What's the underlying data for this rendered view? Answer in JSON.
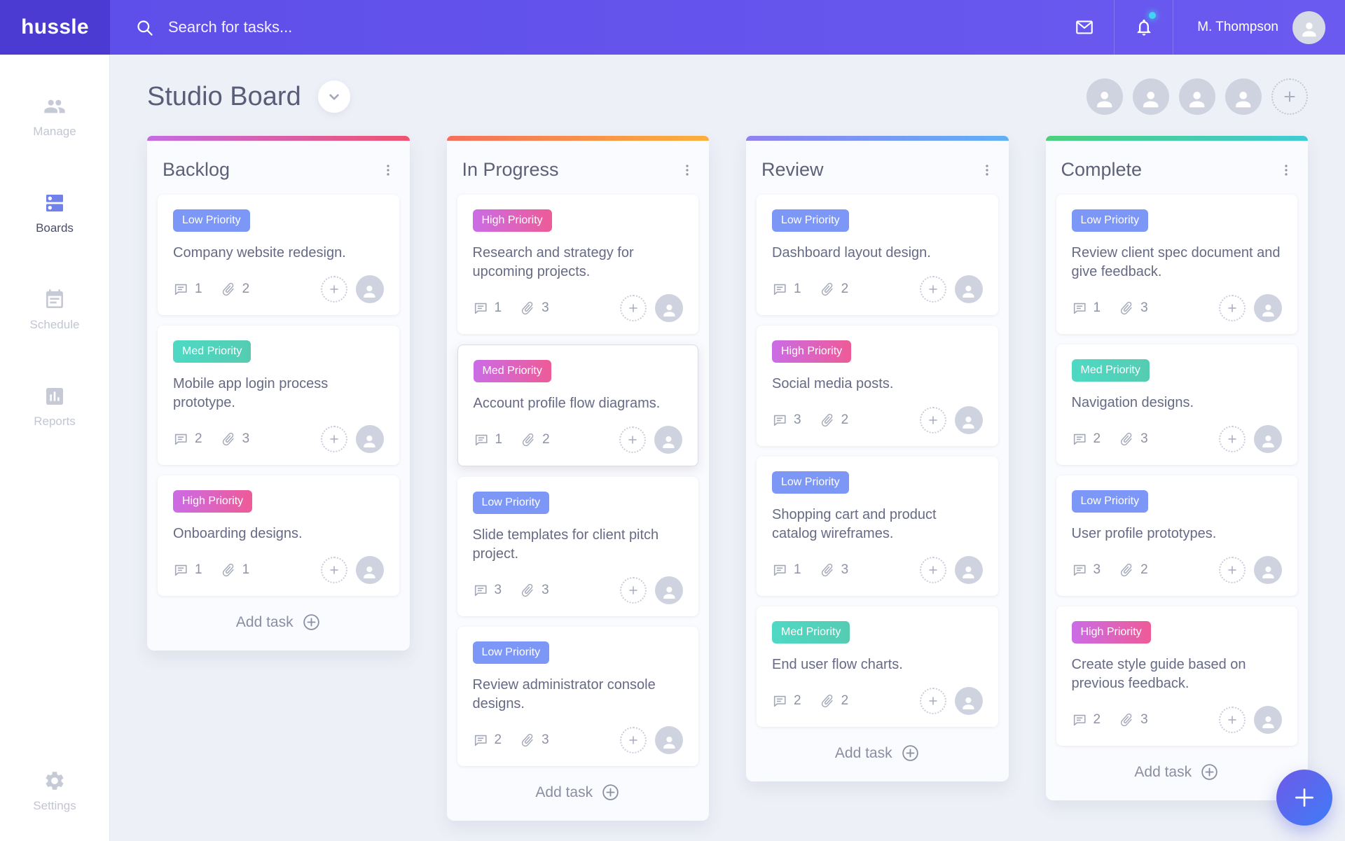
{
  "app": {
    "logo": "hussle"
  },
  "topbar": {
    "search_placeholder": "Search for tasks...",
    "user_name": "M. Thompson",
    "notifications_unread": true
  },
  "sidebar": {
    "items": [
      {
        "label": "Manage",
        "icon": "people-icon",
        "active": false
      },
      {
        "label": "Boards",
        "icon": "boards-icon",
        "active": true
      },
      {
        "label": "Schedule",
        "icon": "calendar-icon",
        "active": false
      },
      {
        "label": "Reports",
        "icon": "bar-chart-icon",
        "active": false
      }
    ],
    "settings": {
      "label": "Settings",
      "icon": "gear-icon"
    }
  },
  "header": {
    "title": "Studio Board",
    "team_avatar_count": 4
  },
  "board": {
    "add_task_label": "Add task",
    "columns": [
      {
        "name": "Backlog",
        "accent_from": "#c46be2",
        "accent_to": "#ef5470",
        "cards": [
          {
            "priority": "Low Priority",
            "variant": "blue",
            "title": "Company website redesign.",
            "comments": 1,
            "attachments": 2
          },
          {
            "priority": "Med Priority",
            "variant": "teal",
            "title": "Mobile app login process prototype.",
            "comments": 2,
            "attachments": 3
          },
          {
            "priority": "High Priority",
            "variant": "pink",
            "title": "Onboarding designs.",
            "comments": 1,
            "attachments": 1
          }
        ]
      },
      {
        "name": "In Progress",
        "accent_from": "#f4705c",
        "accent_to": "#fbb03b",
        "cards": [
          {
            "priority": "High Priority",
            "variant": "pink",
            "title": "Research and strategy for upcoming projects.",
            "comments": 1,
            "attachments": 3
          },
          {
            "priority": "Med Priority",
            "variant": "pink",
            "title": "Account profile flow diagrams.",
            "comments": 1,
            "attachments": 2,
            "highlighted": true
          },
          {
            "priority": "Low Priority",
            "variant": "blue",
            "title": "Slide templates for client pitch project.",
            "comments": 3,
            "attachments": 3
          },
          {
            "priority": "Low Priority",
            "variant": "blue",
            "title": "Review administrator console designs.",
            "comments": 2,
            "attachments": 3
          }
        ]
      },
      {
        "name": "Review",
        "accent_from": "#9181f0",
        "accent_to": "#5fb0f7",
        "cards": [
          {
            "priority": "Low Priority",
            "variant": "blue",
            "title": "Dashboard layout design.",
            "comments": 1,
            "attachments": 2
          },
          {
            "priority": "High Priority",
            "variant": "pink",
            "title": "Social media posts.",
            "comments": 3,
            "attachments": 2
          },
          {
            "priority": "Low Priority",
            "variant": "blue",
            "title": "Shopping cart and product catalog wireframes.",
            "comments": 1,
            "attachments": 3
          },
          {
            "priority": "Med Priority",
            "variant": "teal",
            "title": "End user flow charts.",
            "comments": 2,
            "attachments": 2
          }
        ]
      },
      {
        "name": "Complete",
        "accent_from": "#4ccf7d",
        "accent_to": "#40cbd4",
        "cards": [
          {
            "priority": "Low Priority",
            "variant": "blue",
            "title": "Review client spec document and give feedback.",
            "comments": 1,
            "attachments": 3
          },
          {
            "priority": "Med Priority",
            "variant": "teal",
            "title": "Navigation designs.",
            "comments": 2,
            "attachments": 3
          },
          {
            "priority": "Low Priority",
            "variant": "blue",
            "title": "User profile prototypes.",
            "comments": 3,
            "attachments": 2
          },
          {
            "priority": "High Priority",
            "variant": "pink",
            "title": "Create style guide based on previous feedback.",
            "comments": 2,
            "attachments": 3
          }
        ]
      }
    ]
  },
  "colors": {
    "topbar_bg": "#5e4ee9",
    "topbar_bg_right": "#6a5af0",
    "logo_bg": "#4b3bd2",
    "page_bg": "#edf0f7",
    "notification_dot": "#3ed6f0",
    "sidebar_active": "#7082ea",
    "badge_low": "#7d97f7",
    "badge_med_from": "#4ed9c4",
    "badge_med_to": "#55ccb2",
    "badge_high_from": "#cb6ce6",
    "badge_high_to": "#ee5b97",
    "fab_from": "#6d5ae8",
    "fab_to": "#3f7cf7"
  }
}
